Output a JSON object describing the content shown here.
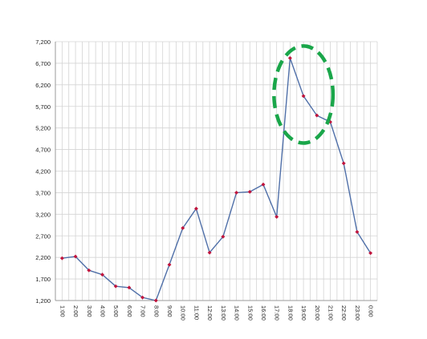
{
  "chart_data": {
    "type": "line",
    "categories": [
      "1:00",
      "2:00",
      "3:00",
      "4:00",
      "5:00",
      "6:00",
      "7:00",
      "8:00",
      "9:00",
      "10:00",
      "11:00",
      "12:00",
      "13:00",
      "14:00",
      "15:00",
      "16:00",
      "17:00",
      "18:00",
      "19:00",
      "20:00",
      "21:00",
      "22:00",
      "23:00",
      "0:00"
    ],
    "series": [
      {
        "values": [
          2180,
          2220,
          1900,
          1800,
          1530,
          1500,
          1270,
          1200,
          2030,
          2880,
          3330,
          2310,
          2680,
          3700,
          3720,
          3890,
          3140,
          6820,
          5940,
          5490,
          5340,
          4380,
          2790,
          2300
        ],
        "color": "#4f6fa8",
        "marker_color": "#c0143c"
      }
    ],
    "ylim": [
      1200,
      7200
    ],
    "yticks": [
      "1,200",
      "1,700",
      "2,200",
      "2,700",
      "3,200",
      "3,700",
      "4,200",
      "4,700",
      "5,200",
      "5,700",
      "6,200",
      "6,700",
      "7,200"
    ],
    "grid": true,
    "annotation": {
      "shape": "dashed-ellipse",
      "color": "#1aa64a",
      "x_from": "17:00",
      "x_to": "21:00",
      "y_from": 4850,
      "y_to": 7100
    }
  }
}
